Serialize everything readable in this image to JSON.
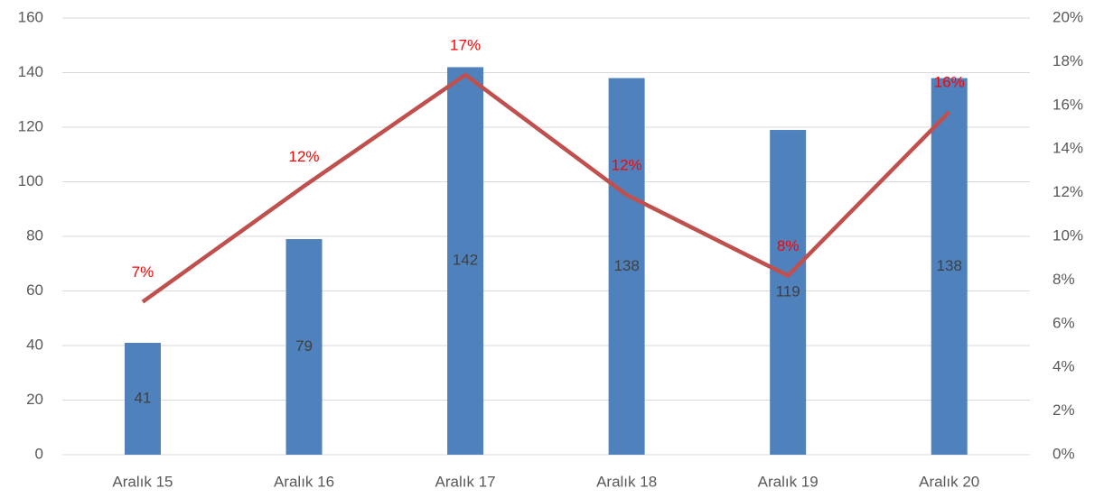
{
  "chart_data": {
    "type": "bar_line",
    "categories": [
      "Aralık 15",
      "Aralık 16",
      "Aralık 17",
      "Aralık 18",
      "Aralık 19",
      "Aralık 20"
    ],
    "series": [
      {
        "type": "bar",
        "color": "#4f81bd",
        "values": [
          41,
          79,
          142,
          138,
          119,
          138
        ]
      },
      {
        "type": "line",
        "axis": "y2",
        "color": "#c0504d",
        "values": [
          7,
          12.3,
          17.4,
          11.9,
          8.2,
          15.7
        ],
        "value_labels": [
          "7%",
          "12%",
          "17%",
          "12%",
          "8%",
          "16%"
        ]
      }
    ],
    "ylim": [
      0,
      160
    ],
    "yticks": [
      0,
      20,
      40,
      60,
      80,
      100,
      120,
      140,
      160
    ],
    "y2lim": [
      0,
      20
    ],
    "y2ticks": [
      {
        "value": 0,
        "label": "0%"
      },
      {
        "value": 2,
        "label": "2%"
      },
      {
        "value": 4,
        "label": "4%"
      },
      {
        "value": 6,
        "label": "6%"
      },
      {
        "value": 8,
        "label": "8%"
      },
      {
        "value": 10,
        "label": "10%"
      },
      {
        "value": 12,
        "label": "12%"
      },
      {
        "value": 14,
        "label": "14%"
      },
      {
        "value": 16,
        "label": "16%"
      },
      {
        "value": 18,
        "label": "18%"
      },
      {
        "value": 20,
        "label": "20%"
      }
    ],
    "grid": true
  }
}
